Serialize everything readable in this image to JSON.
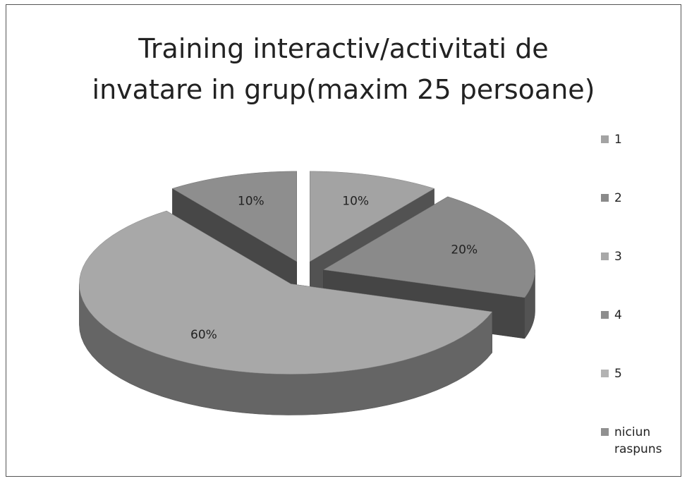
{
  "chart_data": {
    "type": "pie",
    "title": "Training interactiv/activitati de invatare in grup(maxim 25 persoane)",
    "categories": [
      "1",
      "2",
      "3",
      "4",
      "5",
      "niciun raspuns"
    ],
    "values": [
      10,
      20,
      60,
      10,
      0,
      0
    ],
    "value_labels": [
      "10%",
      "20%",
      "60%",
      "10%",
      null,
      null
    ],
    "colors": [
      "#a3a3a3",
      "#8a8a8a",
      "#a8a8a8",
      "#8e8e8e",
      "#b3b3b3",
      "#909090"
    ],
    "legend": "right"
  }
}
